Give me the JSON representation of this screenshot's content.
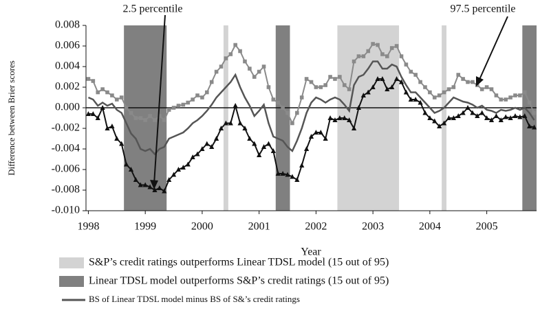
{
  "chart_data": {
    "type": "line",
    "x_label": "Year",
    "y_label": "Difference between Brier scores",
    "categories": [
      "1998",
      null,
      null,
      null,
      null,
      null,
      null,
      null,
      null,
      null,
      null,
      null,
      "1999",
      null,
      null,
      null,
      null,
      null,
      null,
      null,
      null,
      null,
      null,
      null,
      "2000",
      null,
      null,
      null,
      null,
      null,
      null,
      null,
      null,
      null,
      null,
      null,
      "2001",
      null,
      null,
      null,
      null,
      null,
      null,
      null,
      null,
      null,
      null,
      null,
      "2002",
      null,
      null,
      null,
      null,
      null,
      null,
      null,
      null,
      null,
      null,
      null,
      "2003",
      null,
      null,
      null,
      null,
      null,
      null,
      null,
      null,
      null,
      null,
      null,
      "2004",
      null,
      null,
      null,
      null,
      null,
      null,
      null,
      null,
      null,
      null,
      null,
      "2005",
      null,
      null,
      null,
      null,
      null,
      null,
      null,
      null,
      null,
      null
    ],
    "ylim": [
      -0.01,
      0.008
    ],
    "yticks": [
      {
        "value": 0.008,
        "label": "0.008"
      },
      {
        "value": 0.006,
        "label": "0.006"
      },
      {
        "value": 0.004,
        "label": "0.004"
      },
      {
        "value": 0.002,
        "label": "0.002"
      },
      {
        "value": 0,
        "label": "0.000"
      },
      {
        "value": -0.002,
        "label": "-0.002"
      },
      {
        "value": -0.004,
        "label": "-0.004"
      },
      {
        "value": -0.006,
        "label": "-0.006"
      },
      {
        "value": -0.008,
        "label": "-0.008"
      },
      {
        "value": -0.01,
        "label": "-0.010"
      }
    ],
    "regions": [
      {
        "name": "S&P’s credit ratings outperforms Linear TDSL model (15 out of 95)",
        "color": "#d3d3d3",
        "ranges": [
          [
            29,
            29
          ],
          [
            53,
            65
          ],
          [
            75,
            75
          ]
        ]
      },
      {
        "name": "Linear TDSL model outperforms S&P’s credit ratings (15 out of 95)",
        "color": "#808080",
        "ranges": [
          [
            8,
            16
          ],
          [
            40,
            42
          ],
          [
            92,
            94
          ]
        ]
      }
    ],
    "series": [
      {
        "name": "97.5 percentile",
        "color": "#8a8a8a",
        "marker": "square",
        "values": [
          0.0028,
          0.0026,
          0.0015,
          0.0018,
          0.0015,
          0.0012,
          0.0008,
          0.001,
          0.0,
          -0.0005,
          -0.001,
          -0.001,
          -0.0012,
          -0.0008,
          -0.0012,
          -0.0008,
          -0.0012,
          -0.0002,
          0.0,
          0.0002,
          0.0003,
          0.0005,
          0.0008,
          0.0012,
          0.001,
          0.0015,
          0.0025,
          0.0035,
          0.004,
          0.0048,
          0.0052,
          0.0061,
          0.0055,
          0.0045,
          0.0038,
          0.003,
          0.0035,
          0.004,
          0.002,
          0.0008,
          0.0005,
          0.0,
          -0.0005,
          -0.0015,
          -0.0005,
          0.001,
          0.0028,
          0.0025,
          0.002,
          0.002,
          0.0022,
          0.003,
          0.0028,
          0.003,
          0.0022,
          0.0018,
          0.0045,
          0.005,
          0.005,
          0.0055,
          0.0062,
          0.0061,
          0.0052,
          0.005,
          0.0058,
          0.006,
          0.005,
          0.0042,
          0.0035,
          0.0032,
          0.0025,
          0.002,
          0.0015,
          0.001,
          0.0012,
          0.0015,
          0.0018,
          0.002,
          0.0032,
          0.0028,
          0.0025,
          0.0025,
          0.0022,
          0.0018,
          0.002,
          0.0018,
          0.0012,
          0.0008,
          0.0008,
          0.001,
          0.0012,
          0.0012,
          0.0015,
          0.0005,
          -0.0005
        ]
      },
      {
        "name": "BS of Linear TDSL model minus BS of S&’s credit ratings",
        "color": "#555555",
        "marker": "none",
        "values": [
          0.001,
          0.0008,
          0.0002,
          0.0005,
          0.0002,
          0.0004,
          -0.0002,
          -0.0005,
          -0.0015,
          -0.0025,
          -0.003,
          -0.004,
          -0.0042,
          -0.004,
          -0.0045,
          -0.004,
          -0.0038,
          -0.003,
          -0.0028,
          -0.0026,
          -0.0024,
          -0.002,
          -0.0015,
          -0.0012,
          -0.0008,
          -0.0003,
          0.0003,
          0.001,
          0.0015,
          0.002,
          0.0025,
          0.0032,
          0.002,
          0.001,
          0.0002,
          -0.0008,
          -0.0003,
          0.0003,
          -0.0015,
          -0.0028,
          -0.003,
          -0.0032,
          -0.0038,
          -0.0042,
          -0.0032,
          -0.002,
          -0.0005,
          0.0005,
          0.001,
          0.0008,
          0.0005,
          0.0008,
          0.001,
          0.0008,
          0.0003,
          -0.0003,
          0.0022,
          0.003,
          0.0032,
          0.0038,
          0.0045,
          0.0045,
          0.0038,
          0.0038,
          0.0042,
          0.004,
          0.003,
          0.0022,
          0.0015,
          0.0015,
          0.001,
          0.0005,
          0.0,
          -0.0005,
          -0.0003,
          0.0,
          0.0005,
          0.001,
          0.0008,
          0.0006,
          0.0005,
          0.0003,
          0.0,
          0.0002,
          -0.0002,
          -0.0003,
          -0.0005,
          -0.0002,
          -0.0003,
          -0.0002,
          0.0,
          -0.0002,
          0.0,
          -0.0005,
          -0.0012
        ]
      },
      {
        "name": "2.5 percentile",
        "color": "#111111",
        "marker": "triangle",
        "values": [
          -0.0006,
          -0.0006,
          -0.001,
          0.0,
          -0.002,
          -0.0018,
          -0.003,
          -0.0035,
          -0.0055,
          -0.006,
          -0.007,
          -0.0075,
          -0.0075,
          -0.0077,
          -0.008,
          -0.0078,
          -0.0081,
          -0.007,
          -0.0065,
          -0.006,
          -0.0058,
          -0.0055,
          -0.0048,
          -0.0045,
          -0.004,
          -0.0035,
          -0.0038,
          -0.003,
          -0.002,
          -0.0015,
          -0.0015,
          0.0002,
          -0.0015,
          -0.002,
          -0.003,
          -0.0035,
          -0.0046,
          -0.0038,
          -0.0035,
          -0.0042,
          -0.0064,
          -0.0064,
          -0.0065,
          -0.0067,
          -0.007,
          -0.0056,
          -0.004,
          -0.0028,
          -0.0024,
          -0.0024,
          -0.003,
          -0.001,
          -0.0012,
          -0.001,
          -0.001,
          -0.0012,
          -0.002,
          0.0,
          0.0012,
          0.0015,
          0.002,
          0.0028,
          0.0028,
          0.0018,
          0.002,
          0.0028,
          0.0025,
          0.0015,
          0.0008,
          0.0008,
          0.0005,
          -0.0005,
          -0.001,
          -0.0013,
          -0.0018,
          -0.0015,
          -0.001,
          -0.001,
          -0.0008,
          -0.0005,
          0.0,
          -0.0005,
          -0.0008,
          -0.0005,
          -0.001,
          -0.0012,
          -0.0008,
          -0.0012,
          -0.0009,
          -0.001,
          -0.0008,
          -0.0009,
          -0.0008,
          -0.0018,
          -0.0019
        ]
      }
    ]
  }
}
